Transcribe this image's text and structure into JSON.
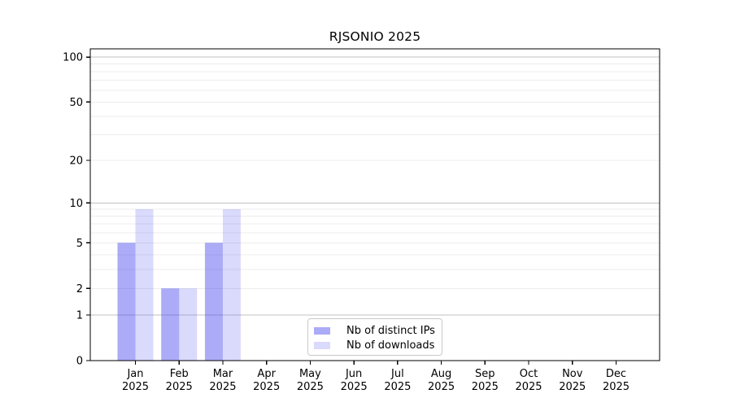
{
  "chart_data": {
    "type": "bar",
    "title": "RJSONIO 2025",
    "categories": [
      "Jan 2025",
      "Feb 2025",
      "Mar 2025",
      "Apr 2025",
      "May 2025",
      "Jun 2025",
      "Jul 2025",
      "Aug 2025",
      "Sep 2025",
      "Oct 2025",
      "Nov 2025",
      "Dec 2025"
    ],
    "series": [
      {
        "name": "Nb of distinct IPs",
        "values": [
          5,
          2,
          5,
          0,
          0,
          0,
          0,
          0,
          0,
          0,
          0,
          0
        ],
        "color": "rgba(68,68,238,0.45)",
        "color_on_white_hex": "#abaaf7"
      },
      {
        "name": "Nb of downloads",
        "values": [
          9,
          2,
          9,
          0,
          0,
          0,
          0,
          0,
          0,
          0,
          0,
          0
        ],
        "color": "rgba(68,68,238,0.20)",
        "color_on_white_hex": "#dcdcfa"
      }
    ],
    "yscale": "log10(1+y)",
    "ylim": [
      0,
      113.6
    ],
    "yticks": [
      0,
      1,
      2,
      5,
      10,
      20,
      50,
      100
    ],
    "major_gridlines": [
      1,
      10,
      100
    ],
    "minor_gridlines": [
      2,
      3,
      4,
      5,
      6,
      7,
      8,
      9,
      20,
      30,
      40,
      50,
      60,
      70,
      80,
      90
    ],
    "grid": "horizontal",
    "legend_position": "bottom-center",
    "colors": {
      "axis": "#000000",
      "tick_label": "#000000",
      "major_grid": "#c2c2c2",
      "minor_grid": "#ececec",
      "bar_base": "#4444ee"
    }
  },
  "legend": {
    "items": [
      {
        "label": "Nb of distinct IPs"
      },
      {
        "label": "Nb of downloads"
      }
    ]
  }
}
